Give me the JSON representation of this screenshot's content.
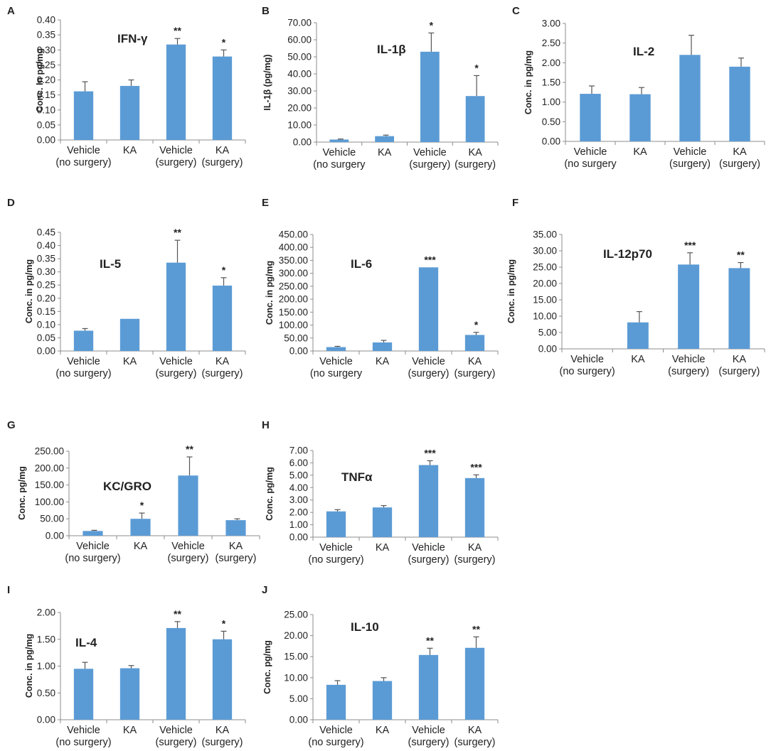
{
  "figure": {
    "colors": {
      "bar": "#5b9bd5",
      "axis": "#8c8c8c",
      "text": "#222222"
    },
    "categories_default": [
      [
        "Vehicle",
        "(no surgery)"
      ],
      [
        "KA",
        ""
      ],
      [
        "Vehicle",
        "(surgery)"
      ],
      [
        "KA",
        "(surgery)"
      ]
    ]
  },
  "chart_data": [
    {
      "type": "bar",
      "panel_label": "A",
      "title": "IFN-γ",
      "ylabel": "Conc. In pg/mg",
      "ylim": [
        0,
        0.4
      ],
      "ytick_step": 0.05,
      "yticks": [
        "0.00",
        "0.05",
        "0.10",
        "0.15",
        "0.20",
        "0.25",
        "0.30",
        "0.35",
        "0.40"
      ],
      "categories": [
        [
          "Vehicle",
          "(no surgery)"
        ],
        [
          "KA",
          ""
        ],
        [
          "Vehicle",
          "(surgery)"
        ],
        [
          "KA",
          "(surgery)"
        ]
      ],
      "values": [
        0.162,
        0.18,
        0.318,
        0.278
      ],
      "errors": [
        0.032,
        0.02,
        0.02,
        0.022
      ],
      "significance": [
        "",
        "",
        "**",
        "*"
      ]
    },
    {
      "type": "bar",
      "panel_label": "B",
      "title": "IL-1β",
      "ylabel": "IL-1β  (pg/mg)",
      "ylim": [
        0,
        70
      ],
      "ytick_step": 10,
      "yticks": [
        "0.00",
        "10.00",
        "20.00",
        "30.00",
        "40.00",
        "50.00",
        "60.00",
        "70.00"
      ],
      "categories": [
        [
          "Vehicle",
          "(no surgery"
        ],
        [
          "KA",
          ""
        ],
        [
          "Vehicle",
          "(surgery)"
        ],
        [
          "KA",
          "(surgery)"
        ]
      ],
      "values": [
        1.5,
        3.5,
        53,
        27
      ],
      "errors": [
        0.3,
        0.6,
        11,
        12
      ],
      "significance": [
        "",
        "",
        "*",
        "*"
      ]
    },
    {
      "type": "bar",
      "panel_label": "C",
      "title": "IL-2",
      "ylabel": "Conc. in pg/mg",
      "ylim": [
        0,
        3.0
      ],
      "ytick_step": 0.5,
      "yticks": [
        "0.00",
        "0.50",
        "1.00",
        "1.50",
        "2.00",
        "2.50",
        "3.00"
      ],
      "categories": [
        [
          "Vehicle",
          "(no surgery"
        ],
        [
          "KA",
          ""
        ],
        [
          "Vehicle",
          "(surgery)"
        ],
        [
          "KA",
          "(surgery)"
        ]
      ],
      "values": [
        1.21,
        1.2,
        2.2,
        1.9
      ],
      "errors": [
        0.2,
        0.17,
        0.5,
        0.22
      ],
      "significance": [
        "",
        "",
        "",
        ""
      ]
    },
    {
      "type": "bar",
      "panel_label": "D",
      "title": "IL-5",
      "ylabel": "Conc. in pg/mg",
      "ylim": [
        0,
        0.45
      ],
      "ytick_step": 0.05,
      "yticks": [
        "0.00",
        "0.05",
        "0.10",
        "0.15",
        "0.20",
        "0.25",
        "0.30",
        "0.35",
        "0.40",
        "0.45"
      ],
      "categories": [
        [
          "Vehicle",
          "(no surgery)"
        ],
        [
          "KA",
          ""
        ],
        [
          "Vehicle",
          "(surgery)"
        ],
        [
          "KA",
          "(surgery)"
        ]
      ],
      "values": [
        0.077,
        0.122,
        0.335,
        0.248
      ],
      "errors": [
        0.008,
        0.0,
        0.085,
        0.03
      ],
      "significance": [
        "",
        "",
        "**",
        "*"
      ]
    },
    {
      "type": "bar",
      "panel_label": "E",
      "title": "IL-6",
      "ylabel": "Conc. in pg/mg",
      "ylim": [
        0,
        450
      ],
      "ytick_step": 50,
      "yticks": [
        "0.00",
        "50.00",
        "100.00",
        "150.00",
        "200.00",
        "250.00",
        "300.00",
        "350.00",
        "400.00",
        "450.00"
      ],
      "categories": [
        [
          "Vehicle",
          "(no surgery"
        ],
        [
          "KA",
          ""
        ],
        [
          "Vehicle",
          "(surgery)"
        ],
        [
          "KA",
          "(surgery)"
        ]
      ],
      "values": [
        15,
        33,
        323,
        62
      ],
      "errors": [
        3,
        8,
        0,
        10
      ],
      "significance": [
        "",
        "",
        "***",
        "*"
      ]
    },
    {
      "type": "bar",
      "panel_label": "F",
      "title": "IL-12p70",
      "ylabel": "Conc. in pg/mg",
      "ylim": [
        0,
        35
      ],
      "ytick_step": 5,
      "yticks": [
        "0.00",
        "5.00",
        "10.00",
        "15.00",
        "20.00",
        "25.00",
        "30.00",
        "35.00"
      ],
      "categories": [
        [
          "Vehicle",
          "(no surgery)"
        ],
        [
          "KA",
          ""
        ],
        [
          "Vehicle",
          "(surgery)"
        ],
        [
          "KA",
          "(surgery)"
        ]
      ],
      "values": [
        0,
        8.1,
        25.8,
        24.7
      ],
      "errors": [
        0,
        3.3,
        3.6,
        1.7
      ],
      "significance": [
        "",
        "",
        "***",
        "**"
      ]
    },
    {
      "type": "bar",
      "panel_label": "G",
      "title": "KC/GRO",
      "ylabel": "Conc. pg/mg",
      "ylim": [
        0,
        250
      ],
      "ytick_step": 50,
      "yticks": [
        "0.00",
        "50.00",
        "100.00",
        "150.00",
        "200.00",
        "250.00"
      ],
      "categories": [
        [
          "Vehicle",
          "(no surgery)"
        ],
        [
          "KA",
          ""
        ],
        [
          "Vehicle",
          "(surgery)"
        ],
        [
          "KA",
          "(surgery)"
        ]
      ],
      "values": [
        14,
        50,
        178,
        46
      ],
      "errors": [
        2,
        17,
        55,
        4
      ],
      "significance": [
        "",
        "*",
        "**",
        ""
      ]
    },
    {
      "type": "bar",
      "panel_label": "H",
      "title": "TNFα",
      "ylabel": "Conc. pg/mg",
      "ylim": [
        0,
        7.0
      ],
      "ytick_step": 1,
      "yticks": [
        "0.00",
        "1.00",
        "2.00",
        "3.00",
        "4.00",
        "5.00",
        "6.00",
        "7.00"
      ],
      "categories": [
        [
          "Vehicle",
          "(no surgery)"
        ],
        [
          "KA",
          ""
        ],
        [
          "Vehicle",
          "(surgery)"
        ],
        [
          "KA",
          "(surgery)"
        ]
      ],
      "values": [
        2.08,
        2.4,
        5.82,
        4.77
      ],
      "errors": [
        0.14,
        0.15,
        0.35,
        0.26
      ],
      "significance": [
        "",
        "",
        "***",
        "***"
      ]
    },
    {
      "type": "bar",
      "panel_label": "I",
      "title": "IL-4",
      "ylabel": "Conc. in pg/mg",
      "ylim": [
        0,
        2.0
      ],
      "ytick_step": 0.5,
      "yticks": [
        "0.00",
        "0.50",
        "1.00",
        "1.50",
        "2.00"
      ],
      "categories": [
        [
          "Vehicle",
          "(no surgery)"
        ],
        [
          "KA",
          ""
        ],
        [
          "Vehicle",
          "(surgery)"
        ],
        [
          "KA",
          "(surgery)"
        ]
      ],
      "values": [
        0.95,
        0.96,
        1.71,
        1.5
      ],
      "errors": [
        0.12,
        0.05,
        0.12,
        0.15
      ],
      "significance": [
        "",
        "",
        "**",
        "*"
      ]
    },
    {
      "type": "bar",
      "panel_label": "J",
      "title": "IL-10",
      "ylabel": "Conc. pg/mg",
      "ylim": [
        0,
        25
      ],
      "ytick_step": 5,
      "yticks": [
        "0.00",
        "5.00",
        "10.00",
        "15.00",
        "20.00",
        "25.00"
      ],
      "categories": [
        [
          "Vehicle",
          "(no surgery)"
        ],
        [
          "KA",
          ""
        ],
        [
          "Vehicle",
          "(surgery)"
        ],
        [
          "KA",
          "(surgery)"
        ]
      ],
      "values": [
        8.3,
        9.2,
        15.4,
        17.1
      ],
      "errors": [
        1.0,
        0.8,
        1.6,
        2.6
      ],
      "significance": [
        "",
        "",
        "**",
        "**"
      ]
    }
  ]
}
